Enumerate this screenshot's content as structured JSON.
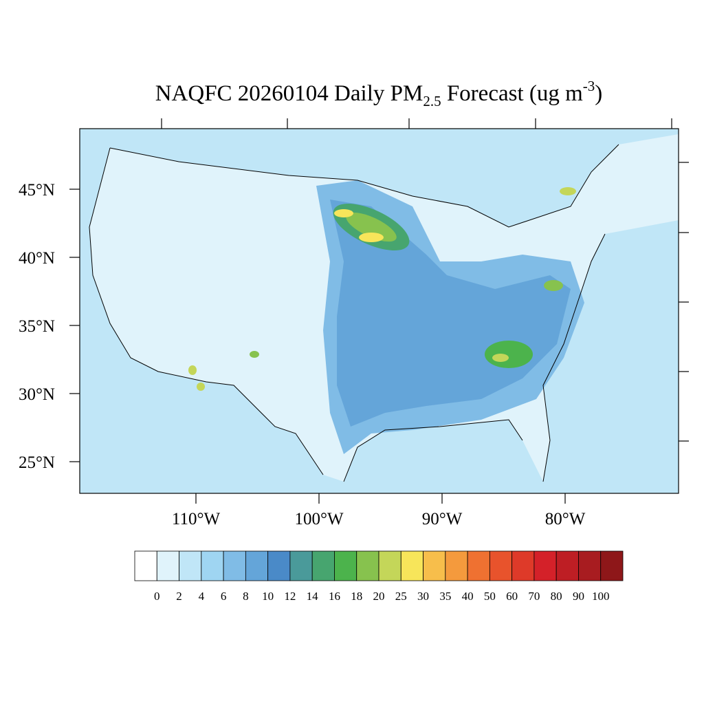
{
  "map": {
    "title": {
      "main": "NAQFC 20260104 Daily PM",
      "subscript": "2.5",
      "middle": " Forecast (ug m",
      "superscript": "-3",
      "end": ")"
    },
    "lat_ticks": [
      {
        "value": 45,
        "label": "45°N"
      },
      {
        "value": 40,
        "label": "40°N"
      },
      {
        "value": 35,
        "label": "35°N"
      },
      {
        "value": 30,
        "label": "30°N"
      },
      {
        "value": 25,
        "label": "25°N"
      }
    ],
    "lon_ticks": [
      {
        "value": -110,
        "label": "110°W"
      },
      {
        "value": -100,
        "label": "100°W"
      },
      {
        "value": -90,
        "label": "90°W"
      },
      {
        "value": -80,
        "label": "80°W"
      }
    ],
    "colorbar": {
      "levels": [
        0,
        2,
        4,
        6,
        8,
        10,
        12,
        14,
        16,
        18,
        20,
        25,
        30,
        35,
        40,
        50,
        60,
        70,
        80,
        90,
        100
      ],
      "colors": [
        "#ffffff",
        "#e0f3fb",
        "#c0e6f7",
        "#9fd5f2",
        "#80bce6",
        "#64a5d9",
        "#4a8ac8",
        "#4a9a9a",
        "#47a56f",
        "#4cb34c",
        "#87c24e",
        "#c4d659",
        "#f7e55a",
        "#f7be4b",
        "#f49a3d",
        "#ef7131",
        "#e8532c",
        "#de3a29",
        "#d42129",
        "#be1e24",
        "#a81c20",
        "#8e1719"
      ]
    }
  }
}
